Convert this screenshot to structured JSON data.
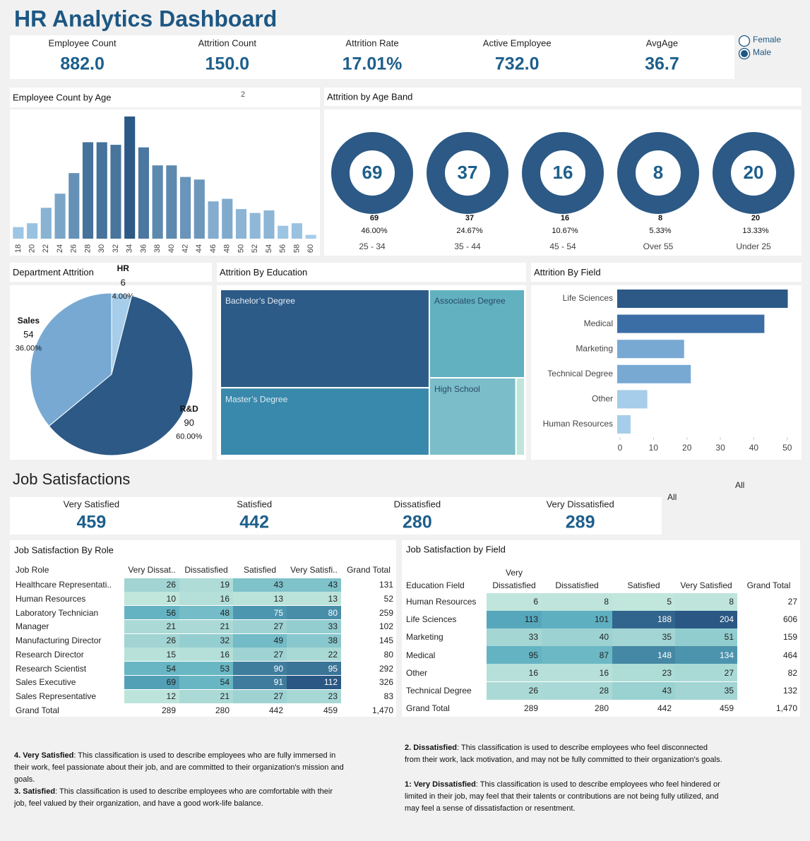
{
  "header": {
    "title": "HR Analytics Dashboard",
    "filters": [
      "Female",
      "Male"
    ],
    "selected": "Male"
  },
  "kpis": [
    {
      "label": "Employee Count",
      "value": "882.0"
    },
    {
      "label": "Attrition Count",
      "value": "150.0"
    },
    {
      "label": "Attrition Rate",
      "value": "17.01%"
    },
    {
      "label": "Active Employee",
      "value": "732.0"
    },
    {
      "label": "AvgAge",
      "value": "36.7"
    }
  ],
  "chart_data": [
    {
      "type": "bar",
      "title": "Employee Count by Age",
      "annotation": "2",
      "categories": [
        18,
        20,
        22,
        24,
        26,
        28,
        30,
        32,
        34,
        36,
        38,
        40,
        42,
        44,
        46,
        48,
        50,
        52,
        54,
        56,
        58,
        60
      ],
      "values": [
        9,
        12,
        24,
        35,
        51,
        75,
        75,
        73,
        95,
        71,
        57,
        57,
        48,
        46,
        29,
        31,
        23,
        20,
        22,
        10,
        12,
        3
      ],
      "color_range": [
        "#a9d1ee",
        "#2c5985"
      ]
    },
    {
      "type": "donut",
      "title": "Attrition by Age Band",
      "categories": [
        "25 - 34",
        "35 - 44",
        "45 - 54",
        "Over 55",
        "Under 25"
      ],
      "values": [
        69,
        37,
        16,
        8,
        20
      ],
      "percents": [
        46.0,
        24.67,
        10.67,
        5.33,
        13.33
      ],
      "percent_labels": [
        "46.00%",
        "24.67%",
        "10.67%",
        "5.33%",
        "13.33%"
      ],
      "color": "#2c5985"
    },
    {
      "type": "pie",
      "title": "Department Attrition",
      "categories": [
        "HR",
        "R&D",
        "Sales"
      ],
      "values": [
        6,
        90,
        54
      ],
      "percents": [
        4.0,
        60.0,
        36.0
      ],
      "percent_labels": [
        "4.00%",
        "60.00%",
        "36.00%"
      ],
      "colors": [
        "#a6cde9",
        "#2c5985",
        "#78a9d3"
      ]
    },
    {
      "type": "treemap",
      "title": "Attrition By Education",
      "categories": [
        "Bachelor’s Degree",
        "Master’s Degree",
        "Associates Degree",
        "High School",
        null
      ],
      "values": [
        61,
        42,
        25,
        20,
        2
      ],
      "colors": [
        "#2d5b87",
        "#3889ab",
        "#62b1c1",
        "#7bbdc9",
        "#bfe6da"
      ]
    },
    {
      "type": "hbar",
      "title": "Attrition By Field",
      "categories": [
        "Life Sciences",
        "Medical",
        "Marketing",
        "Technical Degree",
        "Other",
        "Human Resources"
      ],
      "values": [
        51,
        44,
        20,
        22,
        9,
        4
      ],
      "colors": [
        "#2c5985",
        "#3b6ea5",
        "#78a9d3",
        "#78a9d3",
        "#a6cde9",
        "#a6cde9"
      ],
      "xlim": [
        0,
        53
      ],
      "xticks": [
        0,
        10,
        20,
        30,
        40,
        50
      ]
    }
  ],
  "job_satisfaction": {
    "title": "Job Satisfactions",
    "filters": [
      "All",
      "All"
    ],
    "kpis": [
      {
        "label": "Very Satisfied",
        "value": 459
      },
      {
        "label": "Satisfied",
        "value": 442
      },
      {
        "label": "Dissatisfied",
        "value": 280
      },
      {
        "label": "Very Dissatisfied",
        "value": 289
      }
    ]
  },
  "tables": [
    {
      "title": "Job Satisfaction By Role",
      "columns": [
        "Job Role",
        "Very Dissat..",
        "Dissatisfied",
        "Satisfied",
        "Very Satisfi..",
        "Grand Total"
      ],
      "rows": [
        [
          "Healthcare Representati..",
          26,
          19,
          43,
          43,
          131
        ],
        [
          "Human Resources",
          10,
          16,
          13,
          13,
          52
        ],
        [
          "Laboratory Technician",
          56,
          48,
          75,
          80,
          259
        ],
        [
          "Manager",
          21,
          21,
          27,
          33,
          102
        ],
        [
          "Manufacturing Director",
          26,
          32,
          49,
          38,
          145
        ],
        [
          "Research Director",
          15,
          16,
          27,
          22,
          80
        ],
        [
          "Research Scientist",
          54,
          53,
          90,
          95,
          292
        ],
        [
          "Sales Executive",
          69,
          54,
          91,
          112,
          326
        ],
        [
          "Sales Representative",
          12,
          21,
          27,
          23,
          83
        ],
        [
          "Grand Total",
          289,
          280,
          442,
          459,
          "1,470"
        ]
      ],
      "color_scale": [
        "#c1e6dc",
        "#5aaec0",
        "#2a5783"
      ]
    },
    {
      "title": "Job Satisfaction by Field",
      "columns": [
        "Education Field",
        "Very Dissatisfied",
        "Dissatisfied",
        "Satisfied",
        "Very Satisfied",
        "Grand Total"
      ],
      "rows": [
        [
          "Human Resources",
          6,
          8,
          5,
          8,
          27
        ],
        [
          "Life Sciences",
          113,
          101,
          188,
          204,
          606
        ],
        [
          "Marketing",
          33,
          40,
          35,
          51,
          159
        ],
        [
          "Medical",
          95,
          87,
          148,
          134,
          464
        ],
        [
          "Other",
          16,
          16,
          23,
          27,
          82
        ],
        [
          "Technical Degree",
          26,
          28,
          43,
          35,
          132
        ],
        [
          "Grand Total",
          289,
          280,
          442,
          459,
          "1,470"
        ]
      ],
      "color_scale": [
        "#c1e6dc",
        "#5aaec0",
        "#2a5783"
      ]
    }
  ],
  "notes": [
    {
      "bold": "4. Very Satisfied",
      "text": ": This classification is used to describe employees who are fully immersed in their work, feel passionate about their job, and are committed to their organization's mission and goals."
    },
    {
      "bold": "3. Satisfied",
      "text": ": This classification is used to describe employees who are comfortable with their job, feel valued by their organization, and have a good work-life balance."
    },
    {
      "bold": "2. Dissatisfied",
      "text": ": This classification is used to describe employees who feel disconnected from their work, lack motivation, and may not be fully committed to their organization's goals."
    },
    {
      "bold": "1: Very Dissatisfied",
      "text": ": This classification is used to describe employees who feel hindered or limited in their job, may feel that their talents or contributions are not being fully utilized, and may feel a sense of dissatisfaction or resentment."
    }
  ]
}
